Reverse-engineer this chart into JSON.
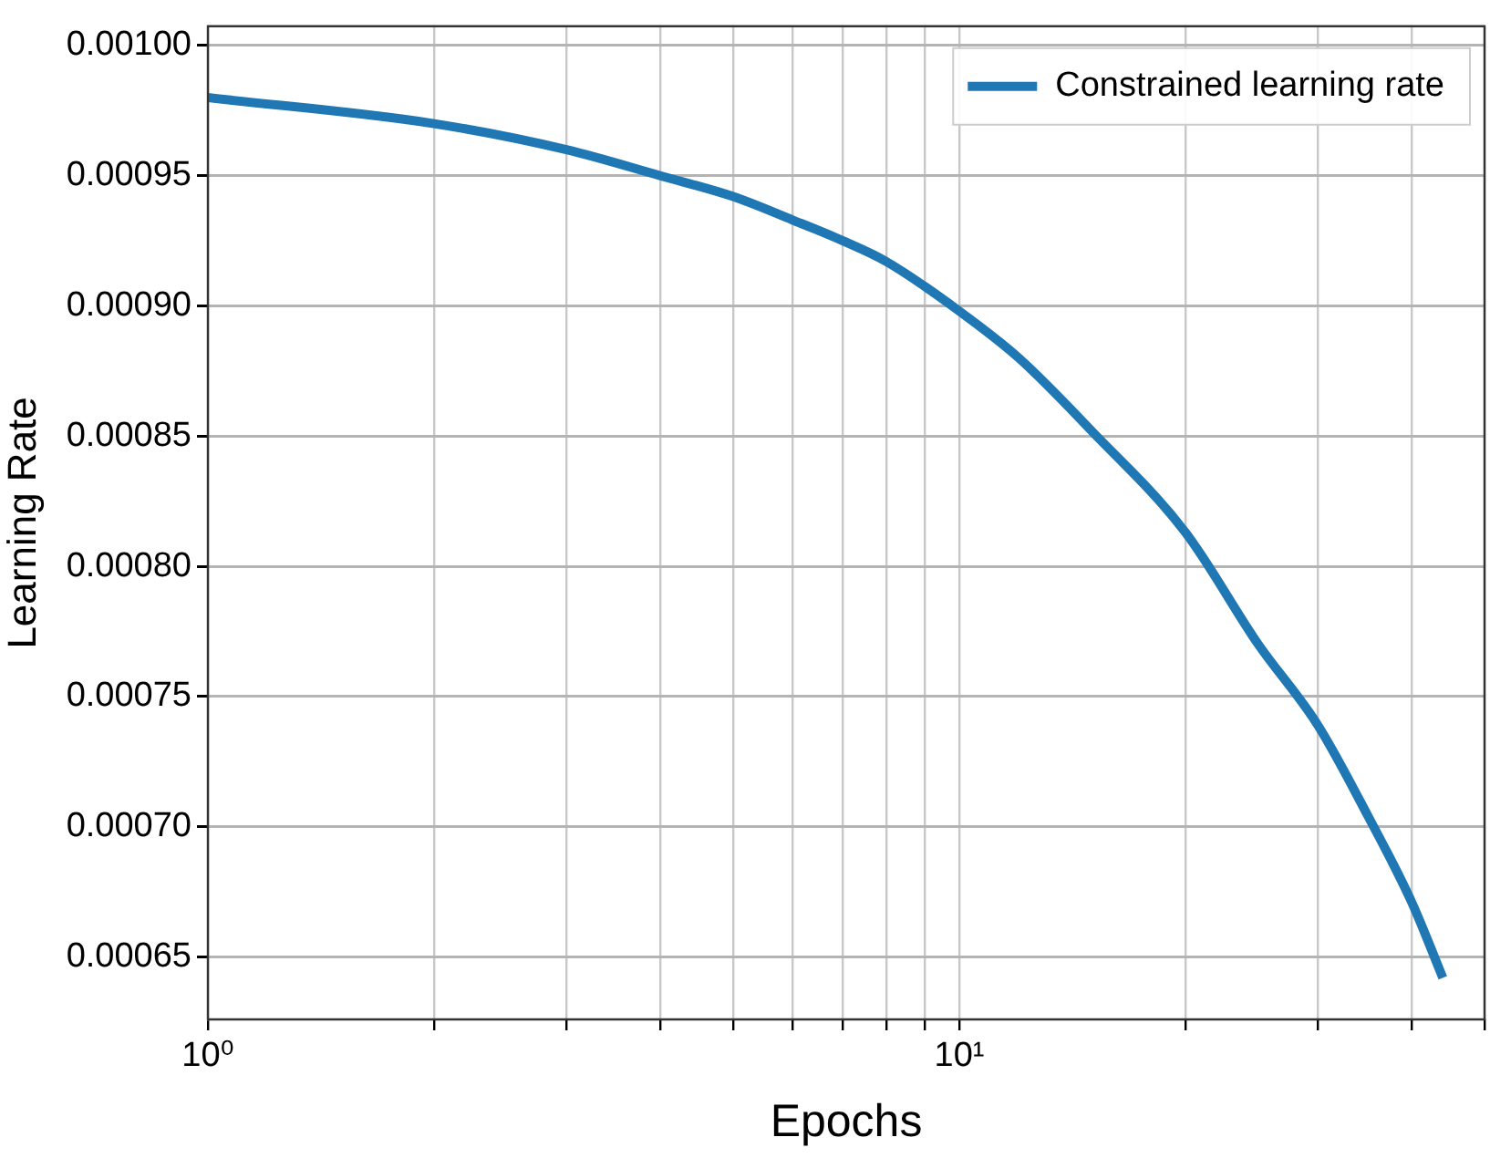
{
  "chart_data": {
    "type": "line",
    "xlabel": "Epochs",
    "ylabel": "Learning Rate",
    "x": [
      1,
      2,
      3,
      4,
      5,
      6,
      7,
      8,
      10,
      12,
      15,
      20,
      25,
      30,
      35,
      40,
      44
    ],
    "series": [
      {
        "name": "Constrained learning rate",
        "color": "#1f77b4",
        "values": [
          0.00098,
          0.00097,
          0.00096,
          0.00095,
          0.000942,
          0.000933,
          0.000925,
          0.000917,
          0.000898,
          0.00088,
          0.000852,
          0.000813,
          0.00077,
          0.000739,
          0.000704,
          0.000671,
          0.000642
        ]
      }
    ],
    "log": "x",
    "xlim": [
      1,
      50
    ],
    "xticks": [
      {
        "value": 1,
        "label": "10⁰"
      },
      {
        "value": 2,
        "label": null
      },
      {
        "value": 3,
        "label": null
      },
      {
        "value": 4,
        "label": null
      },
      {
        "value": 5,
        "label": null
      },
      {
        "value": 6,
        "label": null
      },
      {
        "value": 7,
        "label": null
      },
      {
        "value": 8,
        "label": null
      },
      {
        "value": 9,
        "label": null
      },
      {
        "value": 10,
        "label": "10¹"
      },
      {
        "value": 20,
        "label": null
      },
      {
        "value": 30,
        "label": null
      },
      {
        "value": 40,
        "label": null
      },
      {
        "value": 50,
        "label": null
      }
    ],
    "ylim": [
      0.000626,
      0.0010074
    ],
    "yticks": [
      {
        "value": 0.00065,
        "label": "0.00065"
      },
      {
        "value": 0.0007,
        "label": "0.00070"
      },
      {
        "value": 0.00075,
        "label": "0.00075"
      },
      {
        "value": 0.0008,
        "label": "0.00080"
      },
      {
        "value": 0.00085,
        "label": "0.00085"
      },
      {
        "value": 0.0009,
        "label": "0.00090"
      },
      {
        "value": 0.00095,
        "label": "0.00095"
      },
      {
        "value": 0.001,
        "label": "0.00100"
      }
    ],
    "grid": true,
    "legend": "top right",
    "marker": "none",
    "line_style": "solid"
  }
}
